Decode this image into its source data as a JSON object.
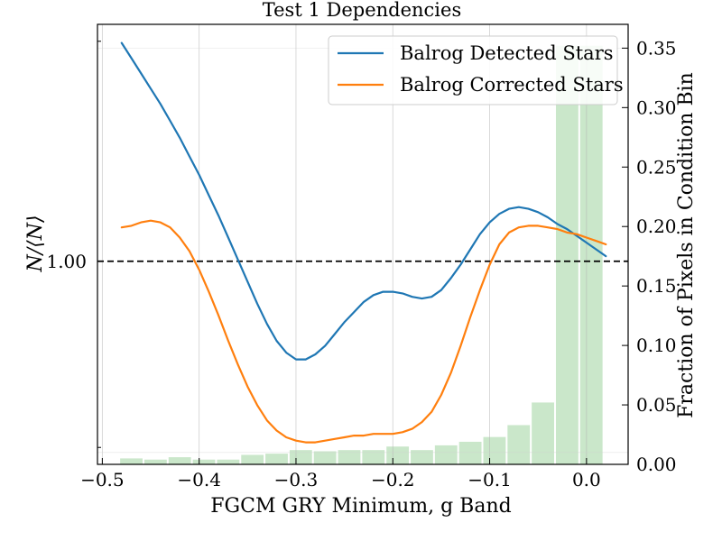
{
  "chart_data": {
    "type": "line",
    "title": "Test 1 Dependencies",
    "xlabel": "FGCM GRY Minimum, g Band",
    "ylabel_left": "N/⟨N⟩",
    "ylabel_right": "Fraction of Pixels in Condition Bin",
    "xlim": [
      -0.505,
      0.043
    ],
    "ylim_left": [
      0.88,
      1.14
    ],
    "ylim_right": [
      0.0,
      0.37
    ],
    "x_ticks": [
      -0.5,
      -0.4,
      -0.3,
      -0.2,
      -0.1,
      0.0
    ],
    "x_tick_labels": [
      "−0.5",
      "−0.4",
      "−0.3",
      "−0.2",
      "−0.1",
      "0.0"
    ],
    "y_left_ticks": [
      1.0
    ],
    "y_left_tick_labels": [
      "1.00"
    ],
    "y_left_minor_ticks": [
      0.89,
      1.13
    ],
    "y_right_ticks": [
      0.0,
      0.05,
      0.1,
      0.15,
      0.2,
      0.25,
      0.3,
      0.35
    ],
    "y_right_tick_labels": [
      "0.00",
      "0.05",
      "0.10",
      "0.15",
      "0.20",
      "0.25",
      "0.30",
      "0.35"
    ],
    "grid": "x-major",
    "reference_line": {
      "y": 1.0,
      "style": "dashed",
      "color": "#000000"
    },
    "legend_position": "upper-right",
    "series": [
      {
        "name": "Balrog Detected Stars",
        "color": "#1f77b4",
        "x": [
          -0.48,
          -0.47,
          -0.46,
          -0.45,
          -0.44,
          -0.43,
          -0.42,
          -0.41,
          -0.4,
          -0.39,
          -0.38,
          -0.37,
          -0.36,
          -0.35,
          -0.34,
          -0.33,
          -0.32,
          -0.31,
          -0.3,
          -0.29,
          -0.28,
          -0.27,
          -0.26,
          -0.25,
          -0.24,
          -0.23,
          -0.22,
          -0.21,
          -0.2,
          -0.19,
          -0.18,
          -0.17,
          -0.16,
          -0.15,
          -0.14,
          -0.13,
          -0.12,
          -0.11,
          -0.1,
          -0.09,
          -0.08,
          -0.07,
          -0.06,
          -0.05,
          -0.04,
          -0.03,
          -0.02,
          -0.01,
          0.0,
          0.01,
          0.02
        ],
        "y": [
          1.129,
          1.12,
          1.111,
          1.102,
          1.093,
          1.083,
          1.073,
          1.062,
          1.051,
          1.039,
          1.027,
          1.014,
          1.001,
          0.988,
          0.975,
          0.963,
          0.953,
          0.946,
          0.942,
          0.942,
          0.945,
          0.95,
          0.957,
          0.964,
          0.97,
          0.976,
          0.98,
          0.982,
          0.982,
          0.981,
          0.979,
          0.978,
          0.979,
          0.983,
          0.99,
          0.998,
          1.007,
          1.016,
          1.023,
          1.028,
          1.031,
          1.032,
          1.031,
          1.029,
          1.026,
          1.022,
          1.019,
          1.015,
          1.011,
          1.007,
          1.003
        ]
      },
      {
        "name": "Balrog Corrected Stars",
        "color": "#ff7f0e",
        "x": [
          -0.48,
          -0.47,
          -0.46,
          -0.45,
          -0.44,
          -0.43,
          -0.42,
          -0.41,
          -0.4,
          -0.39,
          -0.38,
          -0.37,
          -0.36,
          -0.35,
          -0.34,
          -0.33,
          -0.32,
          -0.31,
          -0.3,
          -0.29,
          -0.28,
          -0.27,
          -0.26,
          -0.25,
          -0.24,
          -0.23,
          -0.22,
          -0.21,
          -0.2,
          -0.19,
          -0.18,
          -0.17,
          -0.16,
          -0.15,
          -0.14,
          -0.13,
          -0.12,
          -0.11,
          -0.1,
          -0.09,
          -0.08,
          -0.07,
          -0.06,
          -0.05,
          -0.04,
          -0.03,
          -0.02,
          -0.01,
          0.0,
          0.01,
          0.02
        ],
        "y": [
          1.02,
          1.021,
          1.023,
          1.024,
          1.023,
          1.02,
          1.014,
          1.006,
          0.995,
          0.982,
          0.968,
          0.953,
          0.939,
          0.926,
          0.915,
          0.906,
          0.9,
          0.896,
          0.894,
          0.893,
          0.893,
          0.894,
          0.895,
          0.896,
          0.897,
          0.897,
          0.898,
          0.898,
          0.898,
          0.899,
          0.901,
          0.905,
          0.911,
          0.921,
          0.934,
          0.95,
          0.967,
          0.983,
          0.998,
          1.01,
          1.017,
          1.02,
          1.021,
          1.021,
          1.02,
          1.019,
          1.017,
          1.016,
          1.014,
          1.012,
          1.01
        ]
      }
    ],
    "histogram": {
      "name": "Fraction of Pixels in Condition Bin",
      "color": "#2ca02c",
      "bin_width": 0.025,
      "x_left": [
        -0.4825,
        -0.4575,
        -0.4325,
        -0.4075,
        -0.3825,
        -0.3575,
        -0.3325,
        -0.3075,
        -0.2825,
        -0.2575,
        -0.2325,
        -0.2075,
        -0.1825,
        -0.1575,
        -0.1325,
        -0.1075,
        -0.0825,
        -0.0575,
        -0.0325,
        -0.0075
      ],
      "values": [
        0.005,
        0.004,
        0.006,
        0.004,
        0.004,
        0.008,
        0.009,
        0.012,
        0.011,
        0.012,
        0.012,
        0.015,
        0.012,
        0.016,
        0.019,
        0.023,
        0.033,
        0.052,
        0.352,
        0.352
      ]
    }
  }
}
